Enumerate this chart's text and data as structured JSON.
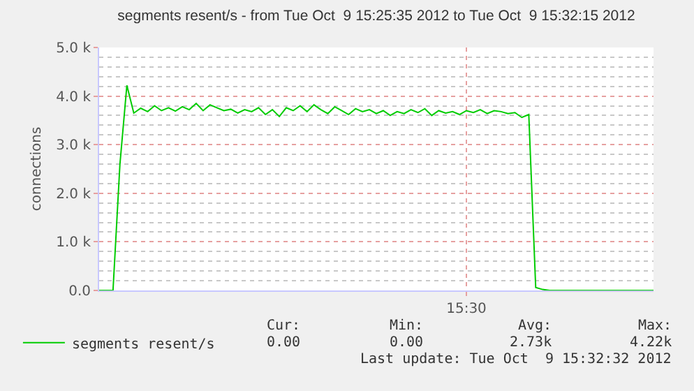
{
  "chart_data": {
    "type": "line",
    "title": "segments resent/s - from Tue Oct  9 15:25:35 2012 to Tue Oct  9 15:32:15 2012",
    "ylabel": "connections",
    "categories": [
      null,
      null,
      null,
      null,
      null,
      null,
      null,
      null,
      null,
      null,
      null,
      null,
      null,
      null,
      null,
      null,
      null,
      null,
      null,
      null,
      null,
      null,
      null,
      null,
      null,
      null,
      null,
      null,
      null,
      null,
      null,
      null,
      null,
      null,
      null,
      null,
      null,
      null,
      null,
      null,
      null,
      null,
      null,
      null,
      null,
      null,
      null,
      null,
      null,
      null,
      null,
      null,
      null,
      "15:30",
      null,
      null,
      null,
      null,
      null,
      null,
      null,
      null,
      null,
      null,
      null,
      null,
      null,
      null,
      null,
      null,
      null,
      null,
      null,
      null,
      null,
      null,
      null,
      null,
      null,
      null,
      null
    ],
    "series": [
      {
        "name": "segments resent/s",
        "color": "#00cc00",
        "values": [
          0,
          0,
          0,
          2600,
          4220,
          3650,
          3750,
          3680,
          3800,
          3700,
          3760,
          3690,
          3780,
          3720,
          3850,
          3700,
          3820,
          3760,
          3700,
          3730,
          3650,
          3720,
          3680,
          3760,
          3620,
          3720,
          3580,
          3760,
          3700,
          3800,
          3680,
          3820,
          3720,
          3640,
          3780,
          3700,
          3620,
          3740,
          3680,
          3720,
          3640,
          3700,
          3600,
          3680,
          3640,
          3720,
          3660,
          3740,
          3600,
          3700,
          3650,
          3680,
          3620,
          3700,
          3660,
          3720,
          3640,
          3700,
          3680,
          3640,
          3660,
          3560,
          3620,
          60,
          20,
          0,
          0,
          0,
          0,
          0,
          0,
          0,
          0,
          0,
          0,
          0,
          0,
          0,
          0,
          0,
          0
        ]
      }
    ],
    "ylim": [
      0,
      5000
    ],
    "yticks": [
      {
        "value": 0,
        "label": "0.0"
      },
      {
        "value": 200,
        "label": null
      },
      {
        "value": 400,
        "label": null
      },
      {
        "value": 600,
        "label": null
      },
      {
        "value": 800,
        "label": null
      },
      {
        "value": 1000,
        "label": "1.0 k"
      },
      {
        "value": 1200,
        "label": null
      },
      {
        "value": 1400,
        "label": null
      },
      {
        "value": 1600,
        "label": null
      },
      {
        "value": 1800,
        "label": null
      },
      {
        "value": 2000,
        "label": "2.0 k"
      },
      {
        "value": 2200,
        "label": null
      },
      {
        "value": 2400,
        "label": null
      },
      {
        "value": 2600,
        "label": null
      },
      {
        "value": 2800,
        "label": null
      },
      {
        "value": 3000,
        "label": "3.0 k"
      },
      {
        "value": 3200,
        "label": null
      },
      {
        "value": 3400,
        "label": null
      },
      {
        "value": 3600,
        "label": null
      },
      {
        "value": 3800,
        "label": null
      },
      {
        "value": 4000,
        "label": "4.0 k"
      },
      {
        "value": 4200,
        "label": null
      },
      {
        "value": 4400,
        "label": null
      },
      {
        "value": 4600,
        "label": null
      },
      {
        "value": 4800,
        "label": null
      },
      {
        "value": 5000,
        "label": "5.0 k"
      }
    ],
    "grid": true,
    "legend": "bottom left",
    "marker": "none",
    "line_style": "solid",
    "annotations": [
      "Cur:",
      "Min:",
      "Avg:",
      "Max:",
      "0.00",
      "0.00",
      "2.73k",
      "4.22k",
      "Last update: Tue Oct  9 15:32:32 2012"
    ]
  }
}
